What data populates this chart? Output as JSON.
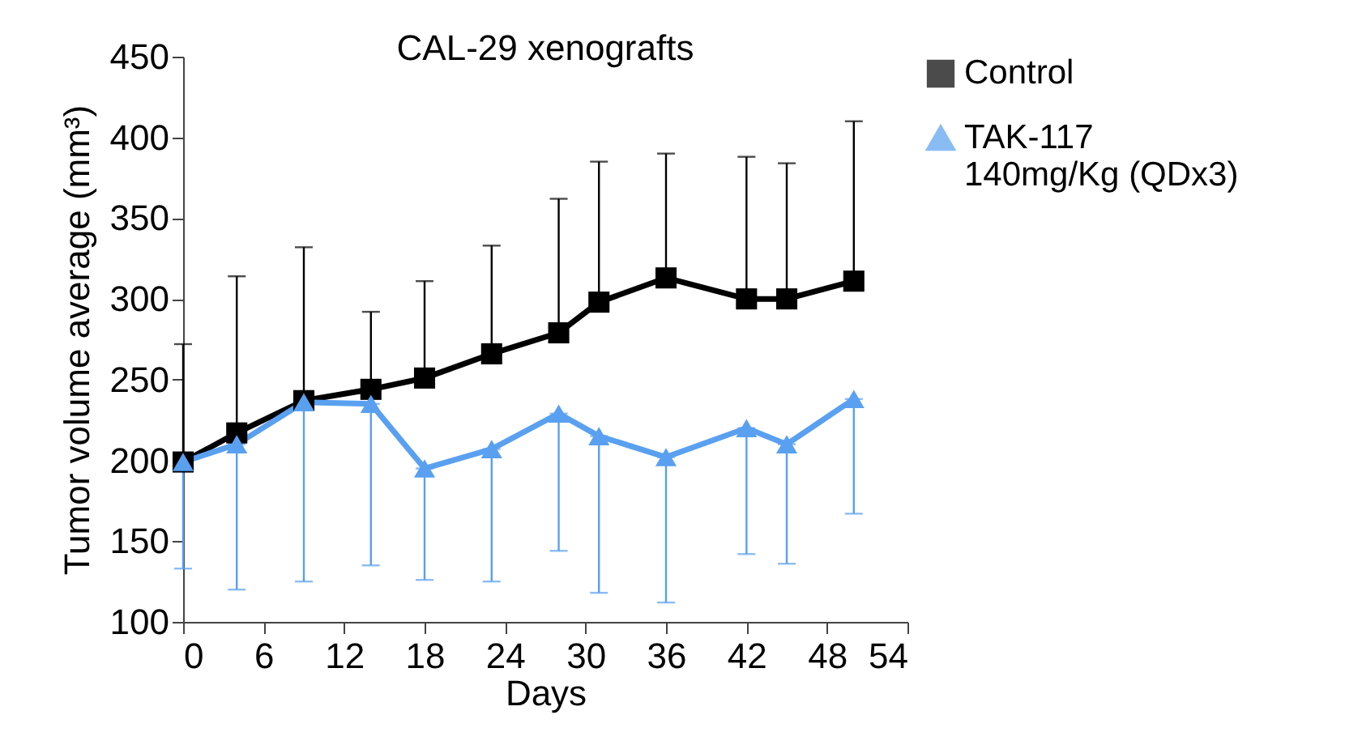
{
  "chart_data": {
    "type": "line",
    "title": "CAL-29 xenografts",
    "xlabel": "Days",
    "ylabel": "Tumor volume average (mm³)",
    "x": [
      0,
      4,
      9,
      14,
      18,
      23,
      28,
      31,
      36,
      42,
      45,
      50
    ],
    "series": [
      {
        "name": "Control",
        "color": "#000000",
        "marker": "square",
        "values": [
          199,
          217,
          237,
          244,
          251,
          266,
          279,
          298,
          313,
          300,
          300,
          311
        ],
        "errors": [
          [
            199,
            272
          ],
          [
            217,
            314
          ],
          [
            237,
            332
          ],
          [
            244,
            292
          ],
          [
            251,
            311
          ],
          [
            266,
            333
          ],
          [
            279,
            362
          ],
          [
            298,
            385
          ],
          [
            313,
            390
          ],
          [
            300,
            388
          ],
          [
            300,
            384
          ],
          [
            311,
            410
          ]
        ]
      },
      {
        "name": "TAK-117\n140mg/Kg (QDx3)",
        "color": "#5aa0f0",
        "marker": "triangle",
        "values": [
          199,
          210,
          236,
          235,
          195,
          207,
          229,
          215,
          202,
          220,
          210,
          238
        ],
        "errors": [
          [
            133,
            199
          ],
          [
            120,
            210
          ],
          [
            125,
            236
          ],
          [
            135,
            235
          ],
          [
            126,
            195
          ],
          [
            125,
            207
          ],
          [
            144,
            229
          ],
          [
            118,
            215
          ],
          [
            112,
            202
          ],
          [
            142,
            220
          ],
          [
            136,
            210
          ],
          [
            167,
            238
          ]
        ]
      }
    ],
    "xlim": [
      0,
      54
    ],
    "xticks": [
      0,
      6,
      12,
      18,
      24,
      30,
      36,
      42,
      48,
      54
    ],
    "ylim": [
      100,
      450
    ],
    "yticks": [
      100,
      150,
      200,
      250,
      300,
      350,
      400,
      450
    ],
    "legend": "right"
  }
}
